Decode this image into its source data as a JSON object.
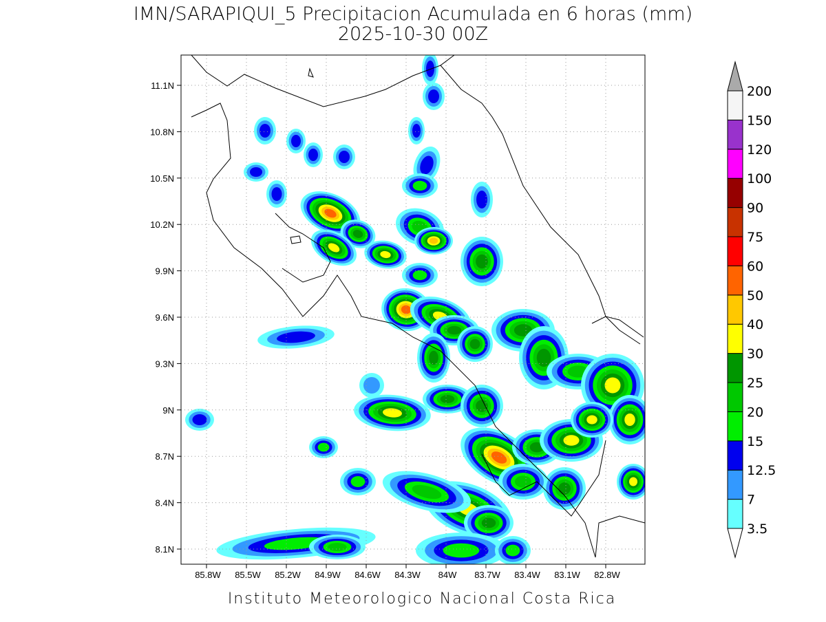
{
  "header": {
    "title": "IMN/SARAPIQUI_5 Precipitacion Acumulada en 6 horas (mm)",
    "subtitle": "2025-10-30 00Z"
  },
  "map": {
    "x_ticks": [
      "85.8W",
      "85.5W",
      "85.2W",
      "84.9W",
      "84.6W",
      "84.3W",
      "84W",
      "83.7W",
      "83.4W",
      "83.1W",
      "82.8W"
    ],
    "y_ticks": [
      "11.1N",
      "10.8N",
      "10.5N",
      "10.2N",
      "9.9N",
      "9.6N",
      "9.3N",
      "9N",
      "8.7N",
      "8.4N",
      "8.1N"
    ]
  },
  "colorbar": {
    "levels": [
      "3.5",
      "7",
      "12.5",
      "15",
      "20",
      "25",
      "30",
      "40",
      "50",
      "60",
      "75",
      "90",
      "100",
      "120",
      "150",
      "200"
    ],
    "colors": [
      "#66ffff",
      "#3399ff",
      "#0000ee",
      "#00ee00",
      "#00c800",
      "#009600",
      "#ffff00",
      "#ffc800",
      "#ff6400",
      "#ff0000",
      "#c83200",
      "#960000",
      "#ff00ff",
      "#9932cc",
      "#f5f5f5"
    ],
    "under_color": "#ffffff",
    "over_color": "#aaaaaa"
  },
  "footer": "Instituto Meteorologico Nacional Costa Rica"
}
